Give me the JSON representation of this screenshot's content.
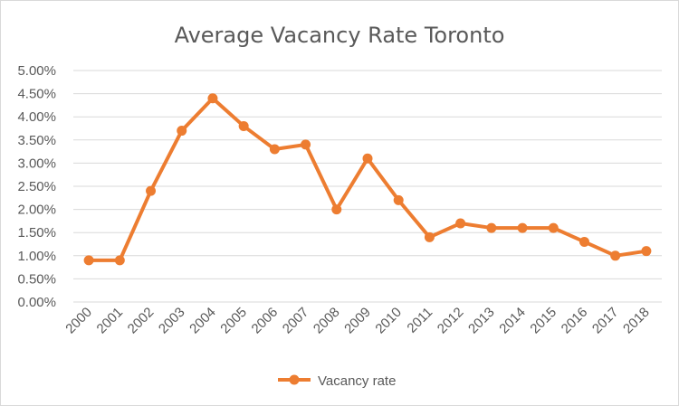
{
  "chart_data": {
    "type": "line",
    "title": "Average Vacancy Rate Toronto",
    "xlabel": "",
    "ylabel": "",
    "x": [
      "2000",
      "2001",
      "2002",
      "2003",
      "2004",
      "2005",
      "2006",
      "2007",
      "2008",
      "2009",
      "2010",
      "2011",
      "2012",
      "2013",
      "2014",
      "2015",
      "2016",
      "2017",
      "2018"
    ],
    "series": [
      {
        "name": "Vacancy rate",
        "color": "#ED7D31",
        "values": [
          0.009,
          0.009,
          0.024,
          0.037,
          0.044,
          0.038,
          0.033,
          0.034,
          0.02,
          0.031,
          0.022,
          0.014,
          0.017,
          0.016,
          0.016,
          0.016,
          0.013,
          0.01,
          0.011
        ]
      }
    ],
    "ylim": [
      0,
      0.05
    ],
    "y_ticks": [
      0,
      0.005,
      0.01,
      0.015,
      0.02,
      0.025,
      0.03,
      0.035,
      0.04,
      0.045,
      0.05
    ],
    "y_tick_labels": [
      "0.00%",
      "0.50%",
      "1.00%",
      "1.50%",
      "2.00%",
      "2.50%",
      "3.00%",
      "3.50%",
      "4.00%",
      "4.50%",
      "5.00%"
    ],
    "grid": "horizontal",
    "legend_position": "bottom"
  }
}
